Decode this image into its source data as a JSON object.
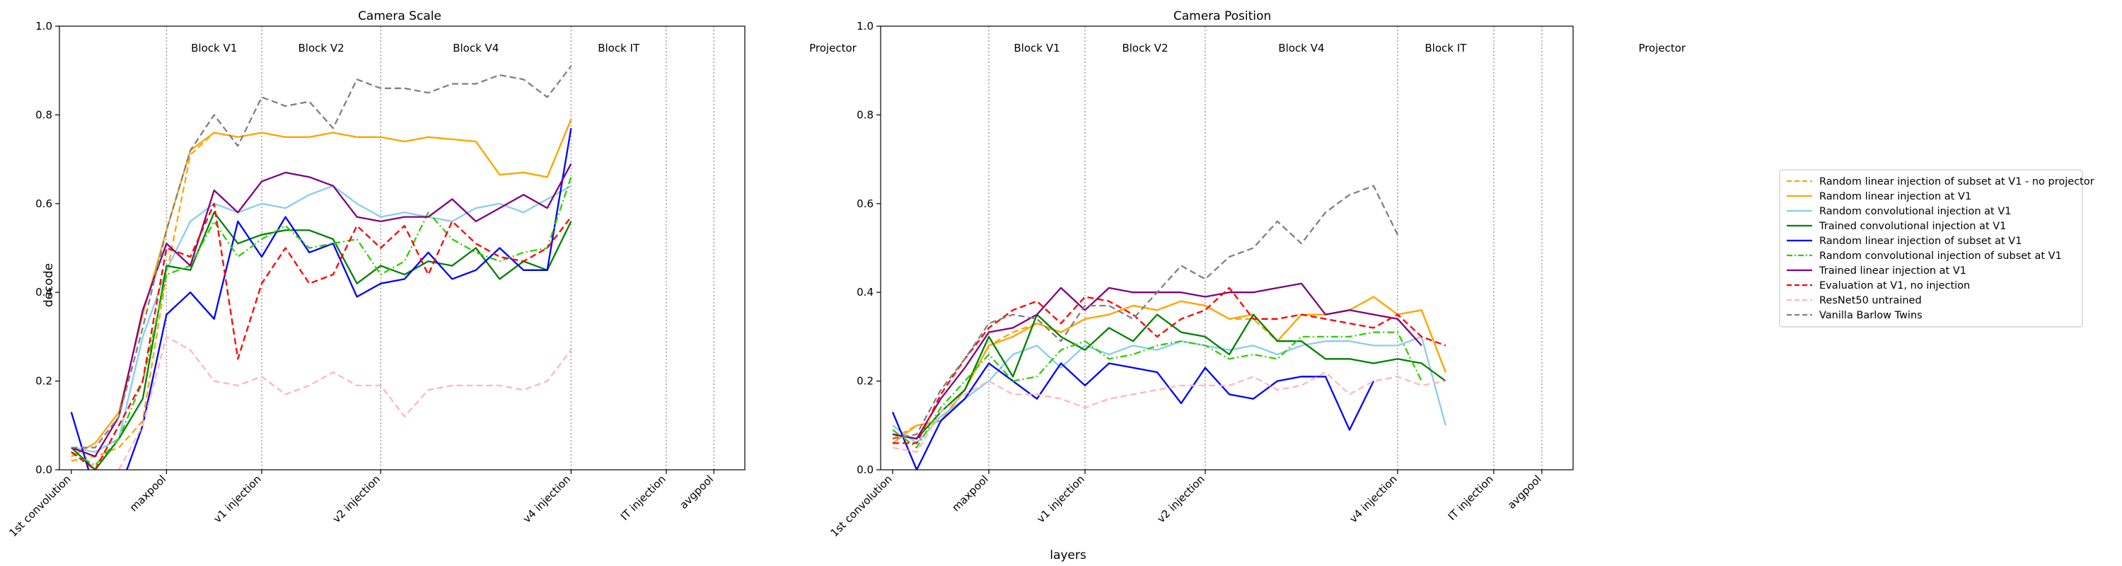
{
  "figure": {
    "xlabel": "layers",
    "legend_placement": "center-right"
  },
  "legend": [
    {
      "label": "Random linear injection of subset at V1 - no projector",
      "color": "#FFA500",
      "dash": "dashed"
    },
    {
      "label": "Random linear injection at V1",
      "color": "#FFA500",
      "dash": "solid"
    },
    {
      "label": "Random convolutional injection at V1",
      "color": "#87CEEB",
      "dash": "solid"
    },
    {
      "label": "Trained convolutional injection at V1",
      "color": "#008000",
      "dash": "solid"
    },
    {
      "label": "Random linear injection of subset at V1",
      "color": "#0000FF",
      "dash": "solid"
    },
    {
      "label": "Random convolutional injection of subset at V1",
      "color": "#33CC00",
      "dash": "dashdot"
    },
    {
      "label": "Trained linear injection at V1",
      "color": "#800080",
      "dash": "solid"
    },
    {
      "label": "Evaluation at V1, no injection",
      "color": "#FF0000",
      "dash": "dashed"
    },
    {
      "label": "ResNet50 untrained",
      "color": "#FFB6C1",
      "dash": "dashed"
    },
    {
      "label": "Vanilla Barlow Twins",
      "color": "#808080",
      "dash": "dashed"
    }
  ],
  "chart_data": [
    {
      "type": "line",
      "title": "Camera Scale",
      "ylabel": "decode",
      "xlabel": "",
      "ylim": [
        0,
        1
      ],
      "yticks": [
        "0.0",
        "0.2",
        "0.4",
        "0.6",
        "0.8",
        "1.0"
      ],
      "grid": false,
      "x_tick_labels": [
        {
          "i": 0,
          "label": "1st convolution"
        },
        {
          "i": 4,
          "label": "maxpool"
        },
        {
          "i": 8,
          "label": "v1 injection"
        },
        {
          "i": 13,
          "label": "v2 injection"
        },
        {
          "i": 21,
          "label": "v4 injection"
        },
        {
          "i": 25,
          "label": "IT injection"
        },
        {
          "i": 27,
          "label": "avgpool"
        }
      ],
      "block_labels": [
        {
          "label": "Block V1",
          "pos": 6
        },
        {
          "label": "Block V2",
          "pos": 10.5
        },
        {
          "label": "Block V4",
          "pos": 17
        },
        {
          "label": "Block IT",
          "pos": 23
        },
        {
          "label": "Projector",
          "pos": 32
        }
      ],
      "vlines": [
        4,
        8,
        13,
        21,
        25,
        27
      ],
      "xrange": [
        -0.5,
        28.3
      ],
      "series": [
        {
          "values": [
            0.02,
            0.03,
            0.05,
            0.11,
            0.44,
            0.71,
            0.76,
            0.75,
            0.76,
            0.75,
            0.75,
            0.76,
            0.75,
            0.75,
            0.74,
            0.75,
            0.745,
            0.74,
            0.665,
            0.67,
            0.66,
            0.79
          ]
        },
        {
          "values": [
            0.03,
            0.06,
            0.13,
            0.35,
            0.54,
            0.72,
            0.76,
            0.75,
            0.76,
            0.75,
            0.75,
            0.76,
            0.75,
            0.75,
            0.74,
            0.75,
            0.745,
            0.74,
            0.665,
            0.67,
            0.66,
            0.79
          ]
        },
        {
          "values": [
            0.05,
            0.04,
            0.07,
            0.3,
            0.45,
            0.56,
            0.6,
            0.58,
            0.6,
            0.59,
            0.62,
            0.64,
            0.6,
            0.57,
            0.58,
            0.57,
            0.56,
            0.59,
            0.6,
            0.58,
            0.61,
            0.64
          ]
        },
        {
          "values": [
            0.05,
            0.0,
            0.07,
            0.16,
            0.46,
            0.45,
            0.58,
            0.51,
            0.53,
            0.54,
            0.54,
            0.52,
            0.42,
            0.46,
            0.44,
            0.47,
            0.46,
            0.5,
            0.43,
            0.47,
            0.45,
            0.56
          ]
        },
        {
          "values": [
            0.13,
            -0.05,
            -0.05,
            0.1,
            0.35,
            0.4,
            0.34,
            0.56,
            0.48,
            0.57,
            0.49,
            0.51,
            0.39,
            0.42,
            0.43,
            0.49,
            0.43,
            0.45,
            0.5,
            0.45,
            0.45,
            0.77
          ]
        },
        {
          "values": [
            0.04,
            0.01,
            0.07,
            0.2,
            0.44,
            0.46,
            0.56,
            0.48,
            0.52,
            0.55,
            0.5,
            0.51,
            0.52,
            0.44,
            0.47,
            0.58,
            0.52,
            0.49,
            0.47,
            0.49,
            0.5,
            0.66
          ]
        },
        {
          "values": [
            0.05,
            0.03,
            0.12,
            0.36,
            0.51,
            0.46,
            0.63,
            0.58,
            0.65,
            0.67,
            0.66,
            0.64,
            0.57,
            0.56,
            0.57,
            0.57,
            0.61,
            0.56,
            0.59,
            0.62,
            0.59,
            0.69
          ]
        },
        {
          "values": [
            0.04,
            0.0,
            0.1,
            0.2,
            0.5,
            0.48,
            0.6,
            0.25,
            0.42,
            0.5,
            0.42,
            0.44,
            0.55,
            0.5,
            0.55,
            0.44,
            0.56,
            0.51,
            0.48,
            0.47,
            0.5,
            0.57
          ]
        },
        {
          "values": [
            null,
            null,
            0.0,
            0.1,
            0.3,
            0.27,
            0.2,
            0.19,
            0.21,
            0.17,
            0.19,
            0.22,
            0.19,
            0.19,
            0.12,
            0.18,
            0.19,
            0.19,
            0.19,
            0.18,
            0.2,
            0.27
          ]
        },
        {
          "values": [
            0.05,
            0.05,
            0.12,
            0.32,
            0.54,
            0.72,
            0.8,
            0.73,
            0.84,
            0.82,
            0.83,
            0.77,
            0.88,
            0.86,
            0.86,
            0.85,
            0.87,
            0.87,
            0.89,
            0.88,
            0.84,
            0.91
          ]
        }
      ]
    },
    {
      "type": "line",
      "title": "Camera Position",
      "ylabel": "",
      "xlabel": "",
      "ylim": [
        0,
        1
      ],
      "yticks": [
        "0.0",
        "0.2",
        "0.4",
        "0.6",
        "0.8",
        "1.0"
      ],
      "grid": false,
      "x_tick_labels": [
        {
          "i": 0,
          "label": "1st convolution"
        },
        {
          "i": 4,
          "label": "maxpool"
        },
        {
          "i": 8,
          "label": "v1 injection"
        },
        {
          "i": 13,
          "label": "v2 injection"
        },
        {
          "i": 21,
          "label": "v4 injection"
        },
        {
          "i": 25,
          "label": "IT injection"
        },
        {
          "i": 27,
          "label": "avgpool"
        }
      ],
      "block_labels": [
        {
          "label": "Block V1",
          "pos": 6
        },
        {
          "label": "Block V2",
          "pos": 10.5
        },
        {
          "label": "Block V4",
          "pos": 17
        },
        {
          "label": "Block IT",
          "pos": 23
        },
        {
          "label": "Projector",
          "pos": 32
        }
      ],
      "vlines": [
        4,
        8,
        13,
        21,
        25,
        27
      ],
      "xrange": [
        -0.5,
        28.3
      ],
      "series": [
        {
          "values": [
            0.07,
            0.1,
            0.11,
            0.18,
            0.28,
            0.31,
            0.33,
            0.31,
            0.34,
            0.35,
            0.37,
            0.36,
            0.38,
            0.37,
            0.34,
            0.34,
            0.29,
            0.35,
            0.35,
            0.36,
            0.39,
            0.35,
            0.36,
            0.22
          ]
        },
        {
          "values": [
            0.06,
            0.1,
            0.11,
            0.18,
            0.28,
            0.3,
            0.33,
            0.31,
            0.34,
            0.35,
            0.37,
            0.36,
            0.38,
            0.37,
            0.34,
            0.35,
            0.29,
            0.35,
            0.35,
            0.36,
            0.39,
            0.35,
            0.36,
            0.22
          ]
        },
        {
          "values": [
            0.1,
            0.06,
            0.12,
            0.16,
            0.2,
            0.26,
            0.28,
            0.23,
            0.28,
            0.26,
            0.28,
            0.27,
            0.29,
            0.28,
            0.27,
            0.28,
            0.26,
            0.28,
            0.29,
            0.29,
            0.28,
            0.28,
            0.3,
            0.1
          ]
        },
        {
          "values": [
            0.08,
            0.07,
            0.13,
            0.18,
            0.3,
            0.21,
            0.35,
            0.3,
            0.27,
            0.32,
            0.29,
            0.35,
            0.31,
            0.3,
            0.26,
            0.35,
            0.29,
            0.29,
            0.25,
            0.25,
            0.24,
            0.25,
            0.24,
            0.2
          ]
        },
        {
          "values": [
            0.13,
            0.0,
            0.11,
            0.16,
            0.24,
            0.2,
            0.16,
            0.24,
            0.19,
            0.24,
            0.23,
            0.22,
            0.15,
            0.23,
            0.17,
            0.16,
            0.2,
            0.21,
            0.21,
            0.09,
            0.2
          ]
        },
        {
          "values": [
            0.09,
            0.05,
            0.14,
            0.2,
            0.26,
            0.2,
            0.21,
            0.27,
            0.29,
            0.25,
            0.26,
            0.28,
            0.29,
            0.28,
            0.25,
            0.26,
            0.25,
            0.3,
            0.3,
            0.3,
            0.31,
            0.31,
            0.2
          ]
        },
        {
          "values": [
            0.08,
            0.07,
            0.16,
            0.23,
            0.31,
            0.32,
            0.35,
            0.41,
            0.36,
            0.41,
            0.4,
            0.4,
            0.4,
            0.39,
            0.4,
            0.4,
            0.41,
            0.42,
            0.35,
            0.36,
            0.35,
            0.34,
            0.28
          ]
        },
        {
          "values": [
            0.06,
            0.06,
            0.17,
            0.25,
            0.32,
            0.36,
            0.38,
            0.33,
            0.39,
            0.38,
            0.35,
            0.3,
            0.34,
            0.36,
            0.41,
            0.34,
            0.34,
            0.35,
            0.34,
            0.33,
            0.32,
            0.35,
            0.3,
            0.28
          ]
        },
        {
          "values": [
            0.05,
            0.04,
            0.13,
            0.17,
            0.2,
            0.17,
            0.17,
            0.16,
            0.14,
            0.16,
            0.17,
            0.18,
            0.19,
            0.19,
            0.19,
            0.21,
            0.18,
            0.19,
            0.22,
            0.17,
            0.2,
            0.21,
            0.19,
            0.2
          ]
        },
        {
          "values": [
            0.07,
            0.08,
            0.18,
            0.25,
            0.33,
            0.35,
            0.34,
            0.29,
            0.37,
            0.37,
            0.34,
            0.4,
            0.46,
            0.43,
            0.48,
            0.5,
            0.56,
            0.51,
            0.58,
            0.62,
            0.64,
            0.53
          ]
        }
      ]
    }
  ]
}
